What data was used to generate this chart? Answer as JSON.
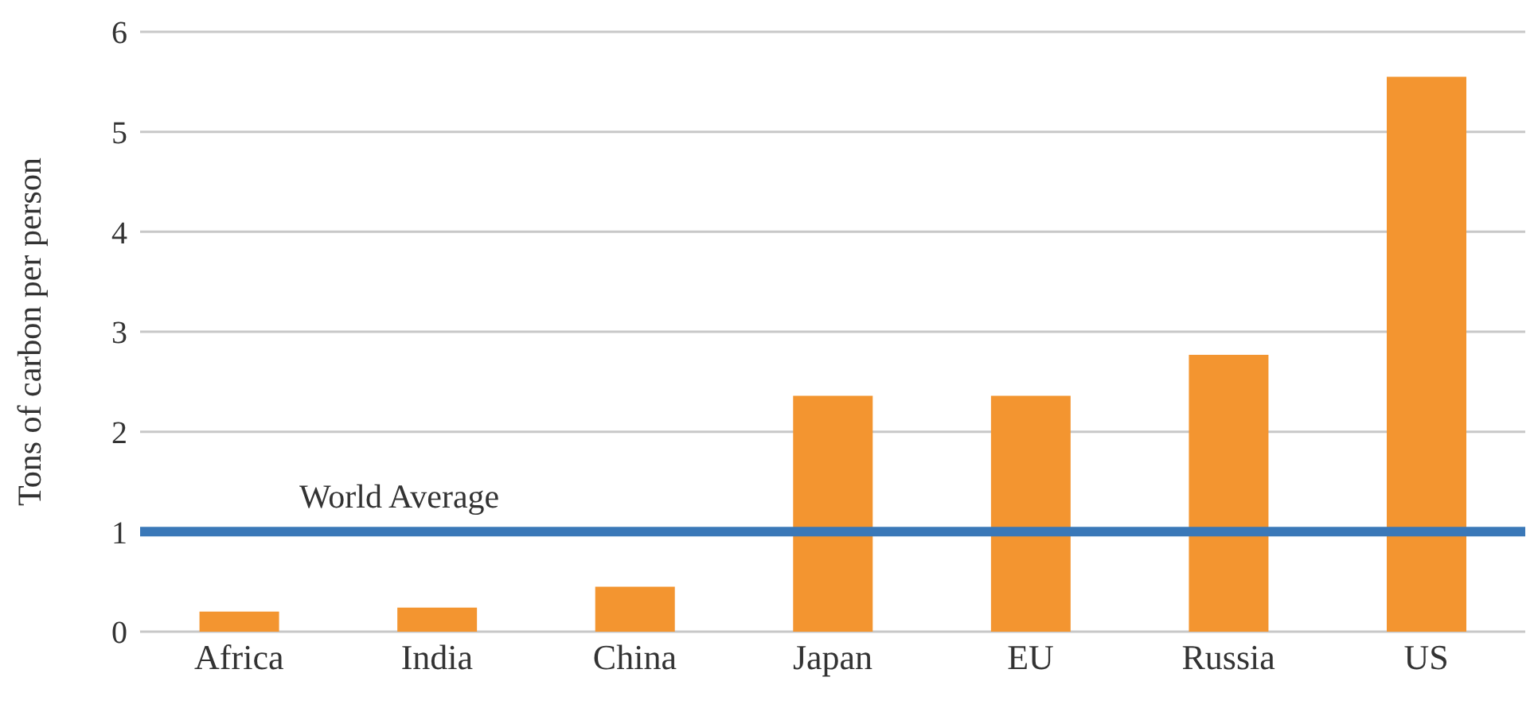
{
  "chart_data": {
    "type": "bar",
    "ylabel": "Tons of carbon per person",
    "categories": [
      "Africa",
      "India",
      "China",
      "Japan",
      "EU",
      "Russia",
      "US"
    ],
    "values": [
      0.2,
      0.24,
      0.45,
      2.36,
      2.36,
      2.77,
      5.55
    ],
    "color": "#f39530",
    "ylim": [
      0,
      6
    ],
    "yticks": [
      0,
      1,
      2,
      3,
      4,
      5,
      6
    ],
    "grid": "y",
    "ref_lines": [
      {
        "axis": "y",
        "value": 1,
        "label": "World Average",
        "color": "#3a78b8"
      }
    ]
  }
}
